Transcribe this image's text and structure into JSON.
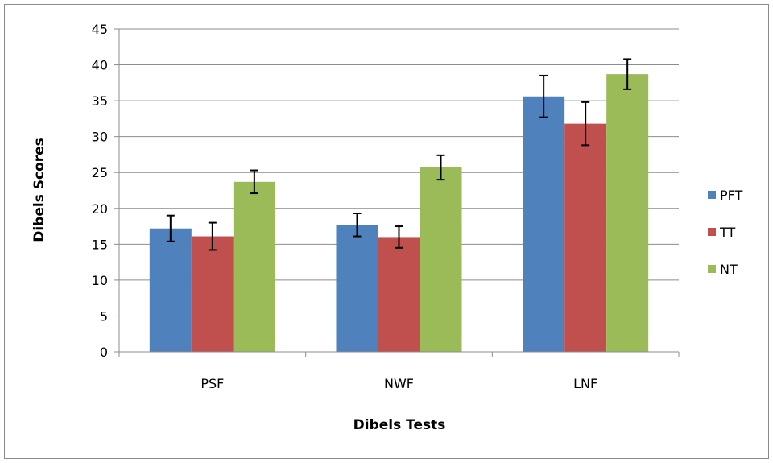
{
  "chart_data": {
    "type": "bar",
    "title": "",
    "xlabel": "Dibels Tests",
    "ylabel": "Dibels Scores",
    "ylim": [
      0,
      45
    ],
    "yticks": [
      0,
      5,
      10,
      15,
      20,
      25,
      30,
      35,
      40,
      45
    ],
    "categories": [
      "PSF",
      "NWF",
      "LNF"
    ],
    "series": [
      {
        "name": "PFT",
        "color": "#4f81bd",
        "values": [
          17.2,
          17.7,
          35.6
        ],
        "errors": [
          1.8,
          1.6,
          2.9
        ]
      },
      {
        "name": "TT",
        "color": "#c0504d",
        "values": [
          16.1,
          16.0,
          31.8
        ],
        "errors": [
          1.9,
          1.5,
          3.0
        ]
      },
      {
        "name": "NT",
        "color": "#9bbb59",
        "values": [
          23.7,
          25.7,
          38.7
        ],
        "errors": [
          1.6,
          1.7,
          2.1
        ]
      }
    ],
    "grid": true,
    "legend": "right"
  }
}
